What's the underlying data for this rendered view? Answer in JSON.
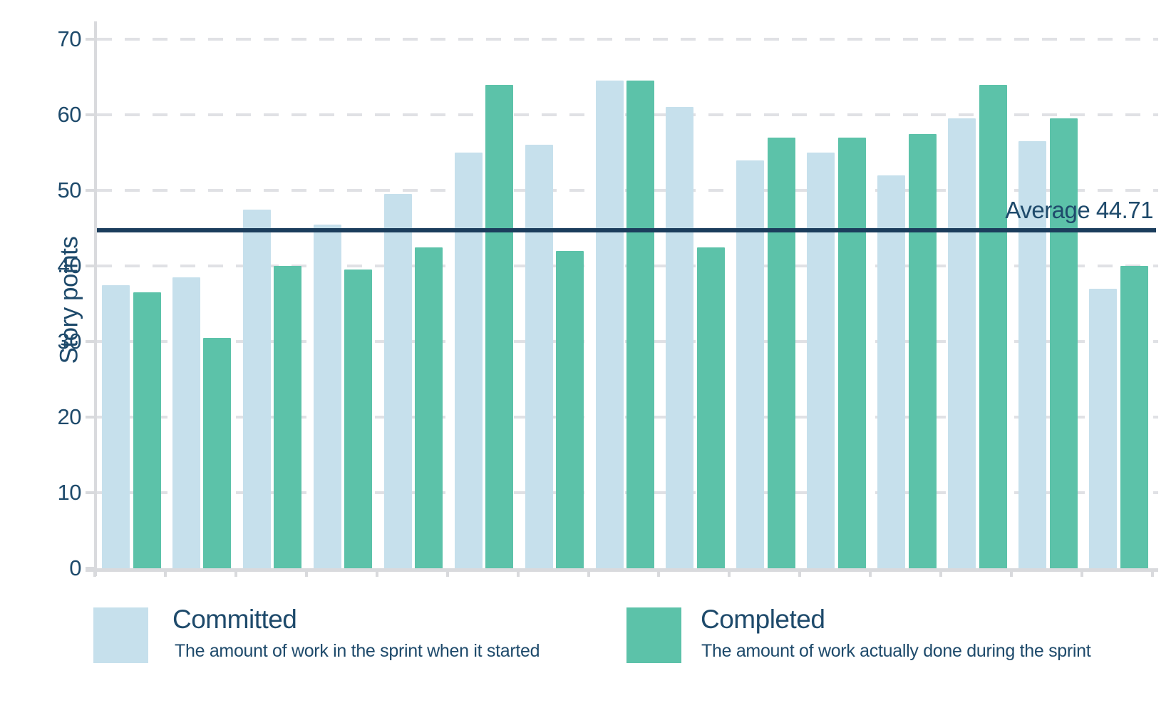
{
  "chart": {
    "ylabel": "Story points",
    "average_label": "Average 44.71"
  },
  "chart_data": {
    "type": "bar",
    "title": "",
    "ylabel": "Story points",
    "ylim": [
      0,
      70
    ],
    "yticks": [
      0,
      10,
      20,
      30,
      40,
      50,
      60,
      70
    ],
    "grid": "horizontal-dashed",
    "legend_position": "bottom",
    "groups": 15,
    "average_line": {
      "value": 44.71,
      "label": "Average 44.71",
      "color": "#1b3d5c"
    },
    "series": [
      {
        "name": "Committed",
        "description": "The amount of work in the sprint when it started",
        "color": "#c6e0ec",
        "values": [
          37.5,
          38.5,
          47.5,
          45.5,
          49.5,
          55,
          56,
          64.5,
          61,
          54,
          55,
          52,
          59.5,
          56.5,
          37
        ]
      },
      {
        "name": "Completed",
        "description": "The amount of work actually done during the sprint",
        "color": "#5cc2a9",
        "values": [
          36.5,
          30.5,
          40,
          39.5,
          42.5,
          64,
          42,
          64.5,
          42.5,
          57,
          57,
          57.5,
          64,
          59.5,
          40
        ]
      }
    ]
  },
  "colors": {
    "text_navy": "#1e4a6b",
    "average_line_navy": "#1b3d5c",
    "axis_gray": "#d9dadd",
    "grid_gray": "#e0e1e5",
    "background": "#ffffff"
  }
}
